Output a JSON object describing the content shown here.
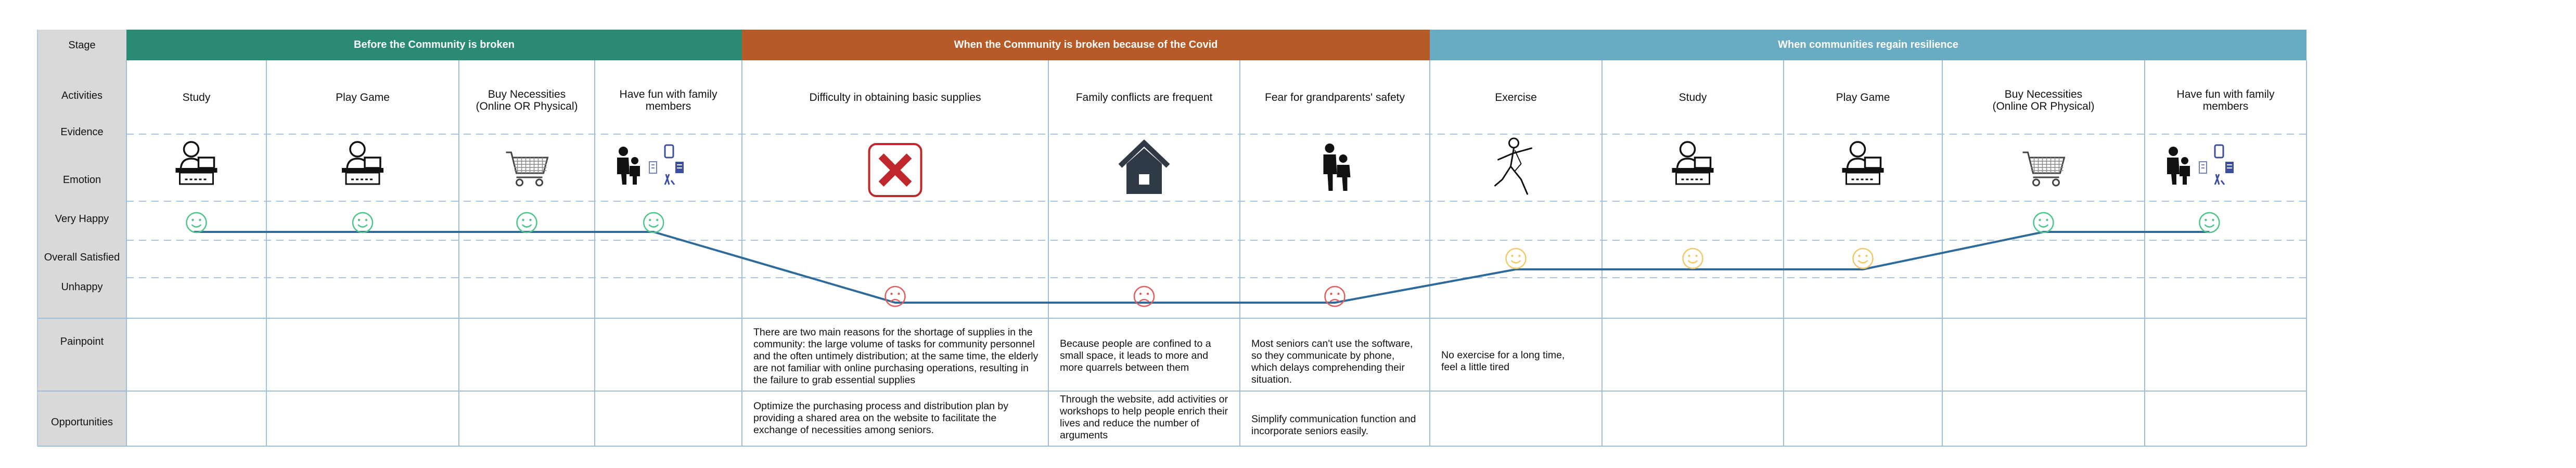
{
  "labels": {
    "stage": "Stage",
    "activities": "Activities",
    "evidence": "Evidence",
    "emotion": "Emotion",
    "very_happy": "Very Happy",
    "overall_satisfied": "Overall Satisfied",
    "unhappy": "Unhappy",
    "painpoint": "Painpoint",
    "opportunities": "Opportunities"
  },
  "phases": [
    {
      "title": "Before the Community is broken",
      "color": "#2a8a73"
    },
    {
      "title": "When the Community is broken because of the Covid",
      "color": "#b65a28"
    },
    {
      "title": "When communities regain resilience",
      "color": "#68abc3"
    }
  ],
  "columns": [
    {
      "activity": "Study",
      "icon": "desk-computer-icon",
      "emotion": "very-happy",
      "painpoint": "",
      "opportunity": ""
    },
    {
      "activity": "Play Game",
      "icon": "desk-computer-icon",
      "emotion": "very-happy",
      "painpoint": "",
      "opportunity": ""
    },
    {
      "activity": "Buy Necessities\n(Online OR Physical)",
      "icon": "shopping-cart-icon",
      "emotion": "very-happy",
      "painpoint": "",
      "opportunity": ""
    },
    {
      "activity": "Have fun with family\nmembers",
      "icon": "family-icon",
      "emotion": "very-happy",
      "painpoint": "",
      "opportunity": ""
    },
    {
      "activity": "Difficulty in obtaining basic supplies",
      "icon": "close-box-icon",
      "emotion": "unhappy",
      "painpoint": "There are two main reasons for the shortage of supplies in the community: the large volume of tasks for community personnel and the often untimely distribution; at the same time, the elderly are not familiar with online purchasing operations, resulting in the failure to grab essential supplies",
      "opportunity": "Optimize the purchasing process and distribution plan by providing a shared area on the website to facilitate the exchange of necessities among seniors."
    },
    {
      "activity": "Family conflicts are frequent",
      "icon": "home-icon",
      "emotion": "unhappy",
      "painpoint": "Because people are confined to a small space, it leads to more and more quarrels between them",
      "opportunity": "Through the website, add activities or workshops to help people enrich their lives and reduce the number of arguments"
    },
    {
      "activity": "Fear for grandparents' safety",
      "icon": "caregiver-icon",
      "emotion": "unhappy",
      "painpoint": "Most seniors can't use the software, so they communicate by phone, which delays comprehending their situation.",
      "opportunity": "Simplify communication function and incorporate seniors easily."
    },
    {
      "activity": "Exercise",
      "icon": "exercise-icon",
      "emotion": "satisfied",
      "painpoint": "No exercise for a long time, feel a little tired",
      "opportunity": ""
    },
    {
      "activity": "Study",
      "icon": "desk-computer-icon",
      "emotion": "satisfied",
      "painpoint": "",
      "opportunity": ""
    },
    {
      "activity": "Play Game",
      "icon": "desk-computer-icon",
      "emotion": "satisfied",
      "painpoint": "",
      "opportunity": ""
    },
    {
      "activity": "Buy Necessities\n(Online OR Physical)",
      "icon": "shopping-cart-icon",
      "emotion": "very-happy",
      "painpoint": "",
      "opportunity": ""
    },
    {
      "activity": "Have fun with family\nmembers",
      "icon": "family-icon",
      "emotion": "very-happy",
      "painpoint": "",
      "opportunity": ""
    }
  ],
  "colors": {
    "label_bg": "#d9d9d9",
    "grid": "#9dbfde",
    "dash": "#a9c6e6",
    "curve": "#2e6a9a",
    "happy": "#4fc48a",
    "satisfied": "#f3c86a",
    "unhappy": "#e35b5b",
    "close_red": "#c0272d",
    "icon_dark": "#2f3a46"
  }
}
